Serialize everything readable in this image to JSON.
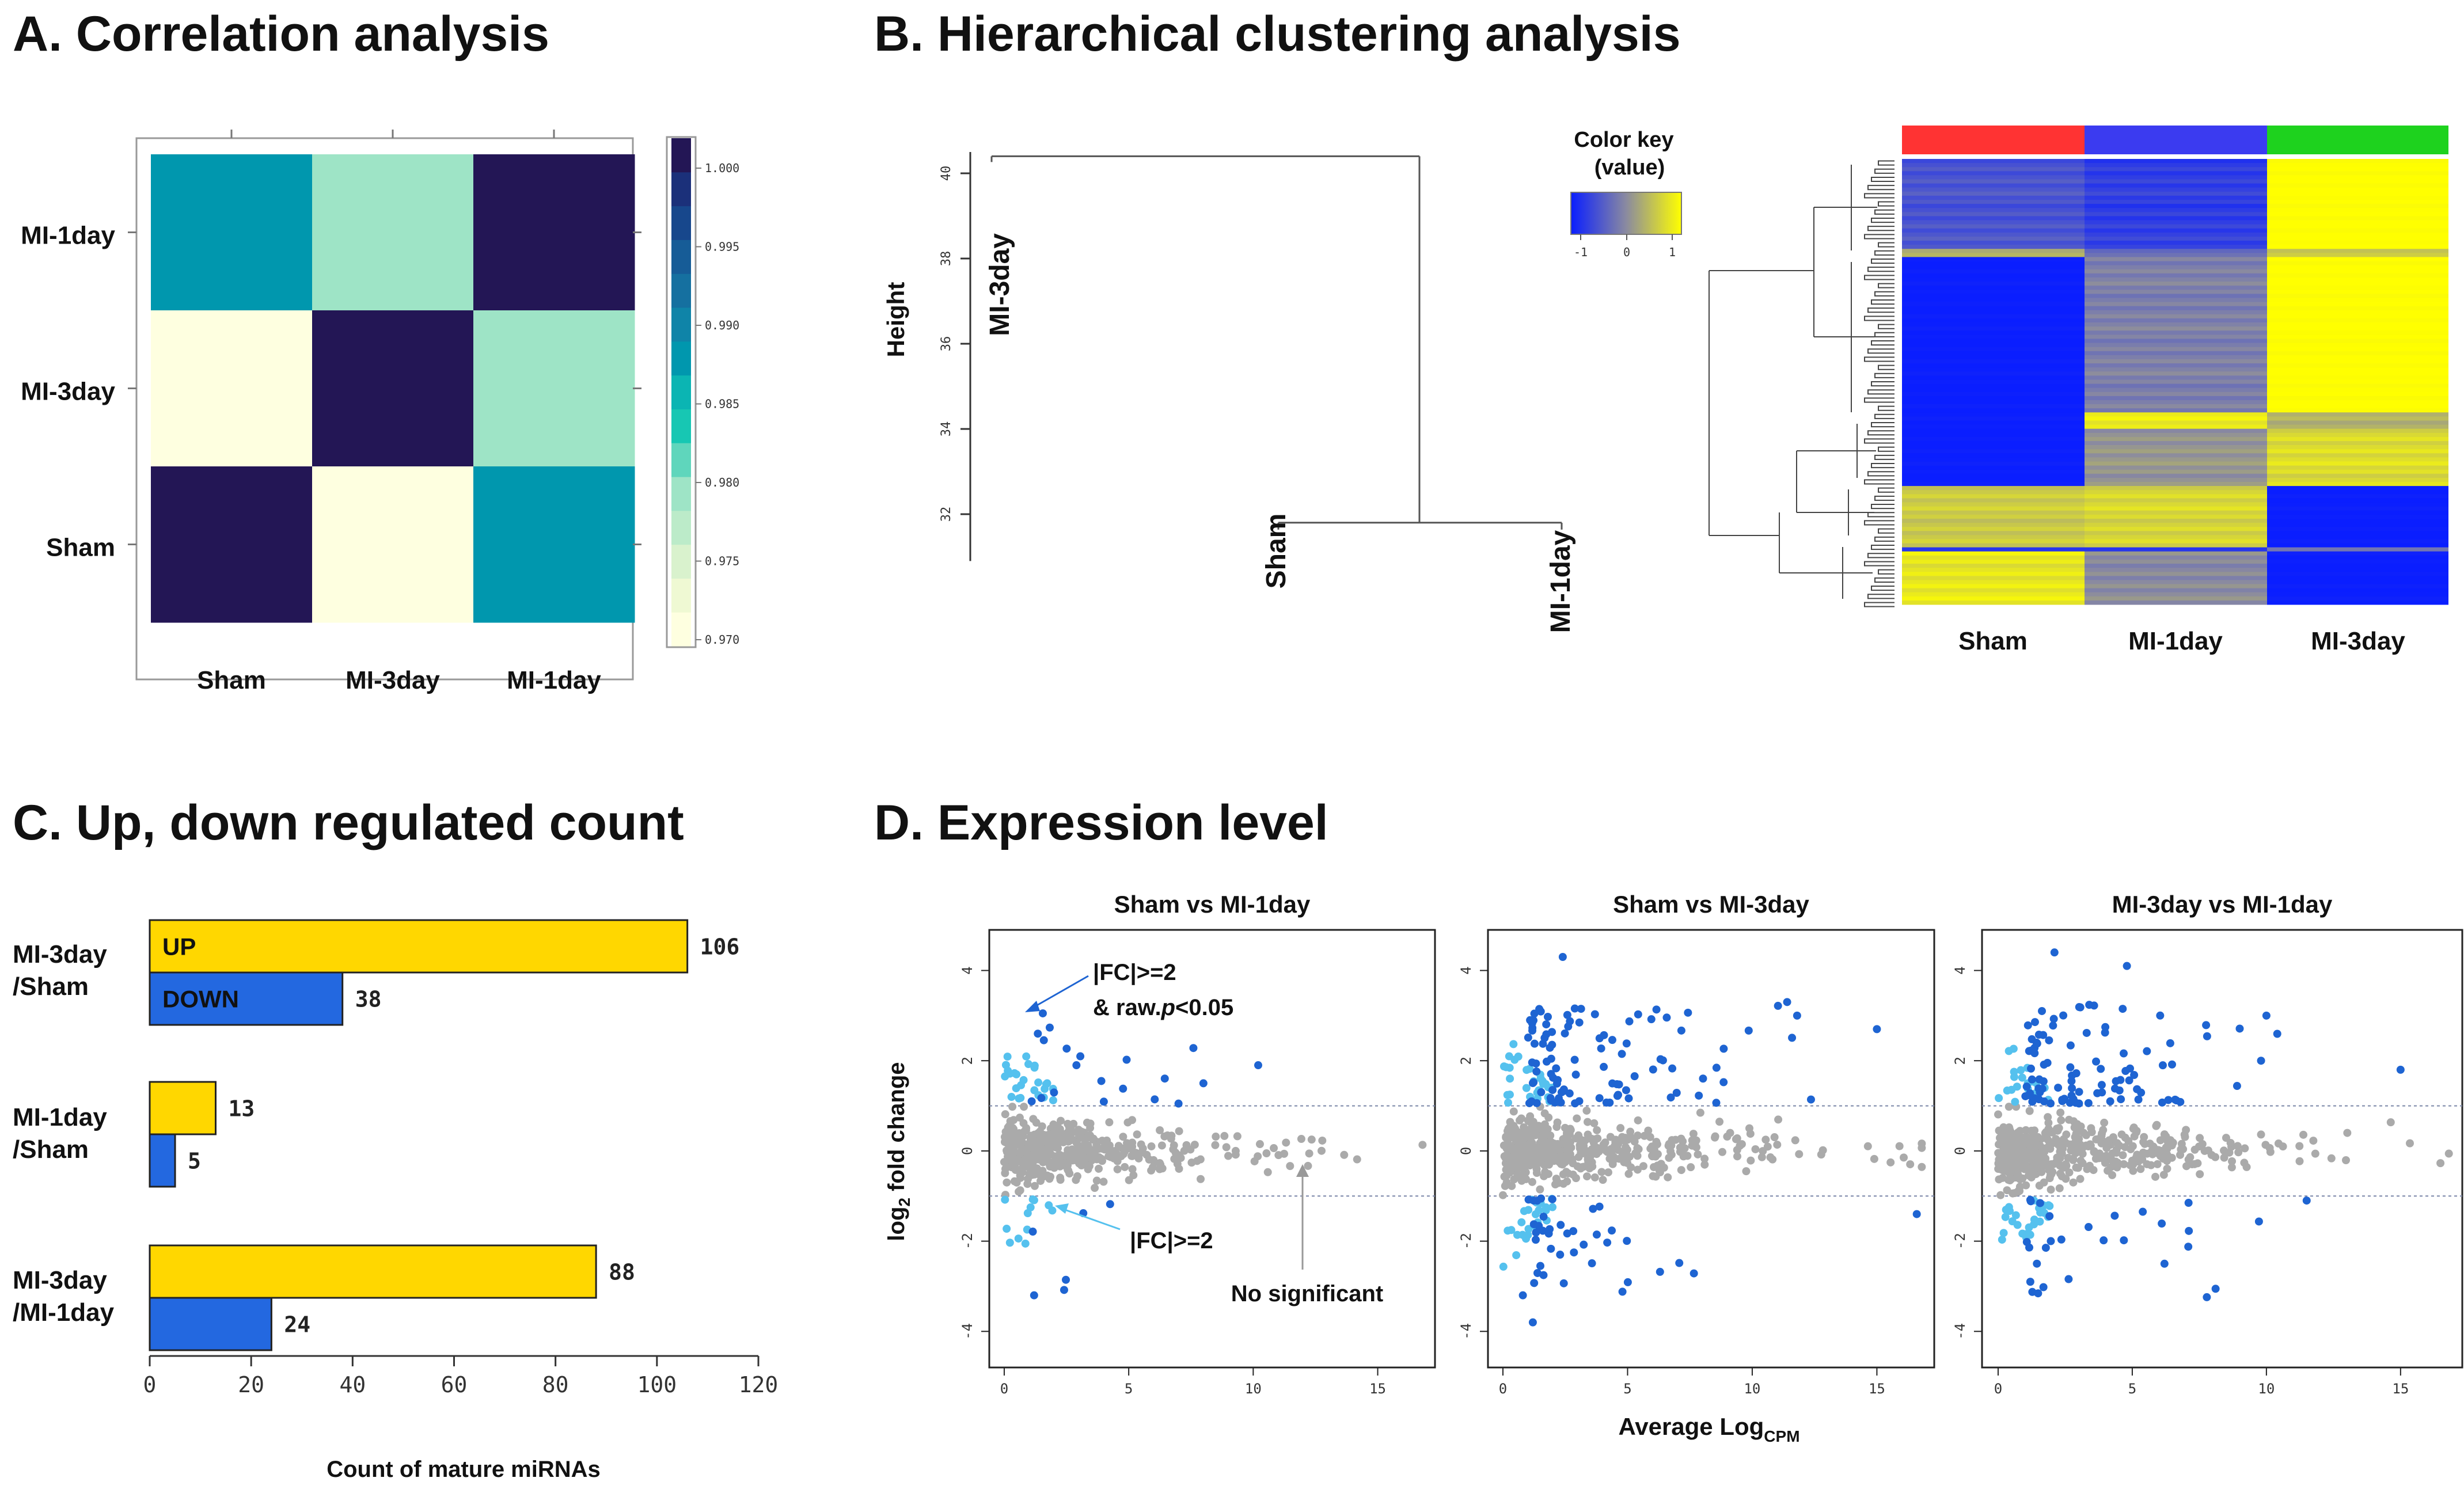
{
  "panels": {
    "A": {
      "title": "A. Correlation analysis"
    },
    "B": {
      "title": "B. Hierarchical clustering analysis"
    },
    "C": {
      "title": "C. Up, down regulated count"
    },
    "D": {
      "title": "D. Expression level"
    }
  },
  "chart_data": [
    {
      "id": "A",
      "type": "heatmap",
      "title": "A. Correlation analysis",
      "x_labels": [
        "Sham",
        "MI-3day",
        "MI-1day"
      ],
      "y_labels": [
        "MI-1day",
        "MI-3day",
        "Sham"
      ],
      "values": [
        [
          0.99,
          0.978,
          1.0
        ],
        [
          0.97,
          1.0,
          0.978
        ],
        [
          1.0,
          0.97,
          0.99
        ]
      ],
      "colors": [
        [
          "#0097AE",
          "#9EE4C6",
          "#231655"
        ],
        [
          "#FEFFE0",
          "#231655",
          "#9EE4C6"
        ],
        [
          "#231655",
          "#FEFFE0",
          "#0097AE"
        ]
      ],
      "colorbar": {
        "ticks": [
          "1.000",
          "0.995",
          "0.990",
          "0.985",
          "0.980",
          "0.975",
          "0.970"
        ],
        "range": [
          0.97,
          1.0
        ],
        "bands": [
          "#FEFFE0",
          "#EFF9D3",
          "#D9F2CD",
          "#BCEBC9",
          "#9EE4C6",
          "#5FD6BC",
          "#17C7B3",
          "#0BB5B3",
          "#0097AE",
          "#0F84A8",
          "#1570A0",
          "#165C97",
          "#17478C",
          "#1B307A",
          "#231655"
        ]
      }
    },
    {
      "id": "B-dendrogram",
      "type": "dendrogram",
      "ylabel": "Height",
      "yticks": [
        "32",
        "34",
        "36",
        "38",
        "40"
      ],
      "ylim": [
        30.5,
        40.5
      ],
      "leaves": [
        "MI-3day",
        "Sham",
        "MI-1day"
      ],
      "merges": [
        {
          "children": [
            "Sham",
            "MI-1day"
          ],
          "height": 31.8
        },
        {
          "children": [
            "MI-3day",
            "Sham+MI-1day"
          ],
          "height": 40.4
        }
      ]
    },
    {
      "id": "B-heatmap",
      "type": "heatmap",
      "color_key": {
        "title_line1": "Color key",
        "title_line2": "(value)",
        "ticks": [
          "-1",
          "0",
          "1"
        ],
        "colors": [
          "#0A1EFF",
          "#8A8AA0",
          "#FFFF00"
        ]
      },
      "columns": [
        "Sham",
        "MI-1day",
        "MI-3day"
      ],
      "column_colors": [
        "#FF3333",
        "#3B3BF0",
        "#1ED21E"
      ],
      "blocks": [
        {
          "rows": 22,
          "values": [
            -0.5,
            -0.7,
            1.0
          ]
        },
        {
          "rows": 2,
          "values": [
            0.4,
            -0.2,
            0.6
          ]
        },
        {
          "rows": 38,
          "values": [
            -1.0,
            -0.1,
            1.0
          ]
        },
        {
          "rows": 4,
          "values": [
            -1.0,
            0.8,
            0.3
          ]
        },
        {
          "rows": 14,
          "values": [
            -1.0,
            0.1,
            0.7
          ]
        },
        {
          "rows": 15,
          "values": [
            0.55,
            0.65,
            -1.0
          ]
        },
        {
          "rows": 1,
          "values": [
            -0.8,
            -0.8,
            -0.2
          ]
        },
        {
          "rows": 13,
          "values": [
            0.8,
            0.0,
            -1.0
          ]
        }
      ]
    },
    {
      "id": "C",
      "type": "bar",
      "orientation": "horizontal",
      "title": "C. Up, down regulated count",
      "xlabel": "Count of mature miRNAs",
      "xlim": [
        0,
        120
      ],
      "xticks": [
        "0",
        "20",
        "40",
        "60",
        "80",
        "100",
        "120"
      ],
      "categories": [
        {
          "line1": "MI-3day",
          "line2": "/Sham"
        },
        {
          "line1": "MI-1day",
          "line2": "/Sham"
        },
        {
          "line1": "MI-3day",
          "line2": "/MI-1day"
        }
      ],
      "series": [
        {
          "name": "UP",
          "color": "#FFD700",
          "values": [
            106,
            13,
            88
          ],
          "labels": [
            "106",
            "13",
            "88"
          ]
        },
        {
          "name": "DOWN",
          "color": "#2368E0",
          "values": [
            38,
            5,
            24
          ],
          "labels": [
            "38",
            "5",
            "24"
          ]
        }
      ]
    },
    {
      "id": "D",
      "type": "scatter",
      "title": "D. Expression level",
      "ylabel_main": "log",
      "ylabel_sub": "2",
      "ylabel_rest": " fold change",
      "xlabel_main": "Average Log",
      "xlabel_sub": "CPM",
      "xlim": [
        -0.6,
        17.3
      ],
      "ylim": [
        -4.8,
        4.9
      ],
      "xticks": [
        "0",
        "5",
        "10",
        "15"
      ],
      "yticks": [
        "-4",
        "-2",
        "0",
        "2",
        "4"
      ],
      "thresholds": [
        1,
        -1
      ],
      "colors": {
        "ns": "#AAAAAA",
        "fc": "#55C1EE",
        "sig": "#1E64D2"
      },
      "annotations": {
        "sig": [
          "|FC|>=2",
          "& raw.",
          "p",
          "<0.05"
        ],
        "fc": "|FC|>=2",
        "ns": "No significant"
      },
      "subplots": [
        {
          "title": "Sham vs MI-1day",
          "seed": 11,
          "n_ns": 430,
          "n_fc": 38,
          "n_sig": 18,
          "sig_up_extra": [
            [
              1.55,
              3.05
            ],
            [
              1.35,
              2.6
            ],
            [
              3.9,
              1.55
            ],
            [
              10.2,
              1.9
            ],
            [
              8.0,
              1.5
            ],
            [
              7.0,
              1.05
            ],
            [
              2.9,
              1.9
            ],
            [
              1.2,
              -3.2
            ]
          ]
        },
        {
          "title": "Sham vs MI-3day",
          "seed": 23,
          "n_ns": 480,
          "n_fc": 55,
          "n_sig": 135,
          "sig_up_extra": [
            [
              2.4,
              4.3
            ],
            [
              11.4,
              3.3
            ],
            [
              11.8,
              3.0
            ],
            [
              15.0,
              2.7
            ],
            [
              1.2,
              -3.8
            ],
            [
              0.8,
              -3.2
            ],
            [
              16.6,
              -1.4
            ]
          ]
        },
        {
          "title": "MI-3day vs MI-1day",
          "seed": 37,
          "n_ns": 470,
          "n_fc": 48,
          "n_sig": 120,
          "sig_up_extra": [
            [
              2.1,
              4.4
            ],
            [
              4.8,
              4.1
            ],
            [
              10.0,
              3.0
            ],
            [
              15.0,
              1.8
            ],
            [
              9.8,
              2.0
            ],
            [
              6.2,
              -2.5
            ],
            [
              11.5,
              -1.1
            ],
            [
              1.2,
              -2.9
            ]
          ]
        }
      ]
    }
  ]
}
